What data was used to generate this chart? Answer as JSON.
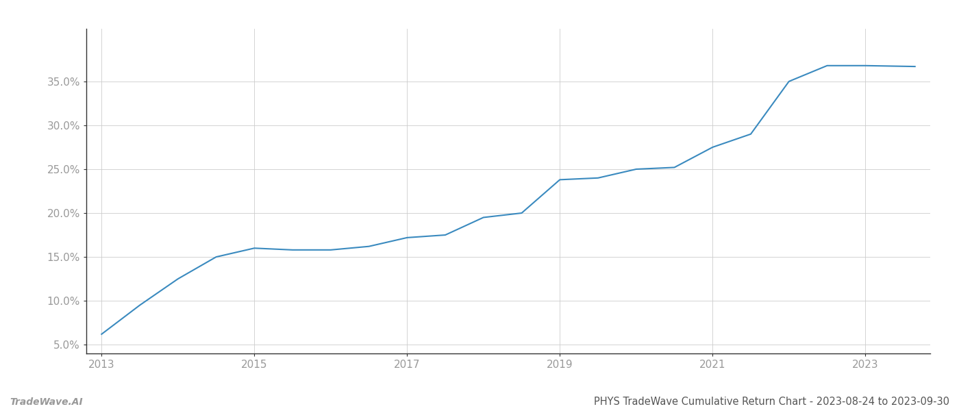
{
  "x_values": [
    2013.0,
    2013.5,
    2014.0,
    2014.5,
    2015.0,
    2015.5,
    2016.0,
    2016.5,
    2017.0,
    2017.5,
    2018.0,
    2018.5,
    2019.0,
    2019.5,
    2020.0,
    2020.5,
    2021.0,
    2021.5,
    2022.0,
    2022.5,
    2023.0,
    2023.65
  ],
  "y_values": [
    6.2,
    9.5,
    12.5,
    15.0,
    16.0,
    15.8,
    15.8,
    16.2,
    17.2,
    17.5,
    19.5,
    20.0,
    23.8,
    24.0,
    25.0,
    25.2,
    27.5,
    29.0,
    35.0,
    36.8,
    36.8,
    36.7
  ],
  "line_color": "#3a8abf",
  "line_width": 1.5,
  "background_color": "#ffffff",
  "grid_color": "#cccccc",
  "title": "PHYS TradeWave Cumulative Return Chart - 2023-08-24 to 2023-09-30",
  "watermark_left": "TradeWave.AI",
  "xlim": [
    2012.8,
    2023.85
  ],
  "ylim": [
    4.0,
    41.0
  ],
  "yticks": [
    5.0,
    10.0,
    15.0,
    20.0,
    25.0,
    30.0,
    35.0
  ],
  "xticks": [
    2013,
    2015,
    2017,
    2019,
    2021,
    2023
  ],
  "tick_color": "#999999",
  "title_color": "#555555",
  "title_fontsize": 10.5,
  "watermark_fontsize": 10,
  "tick_fontsize": 11
}
